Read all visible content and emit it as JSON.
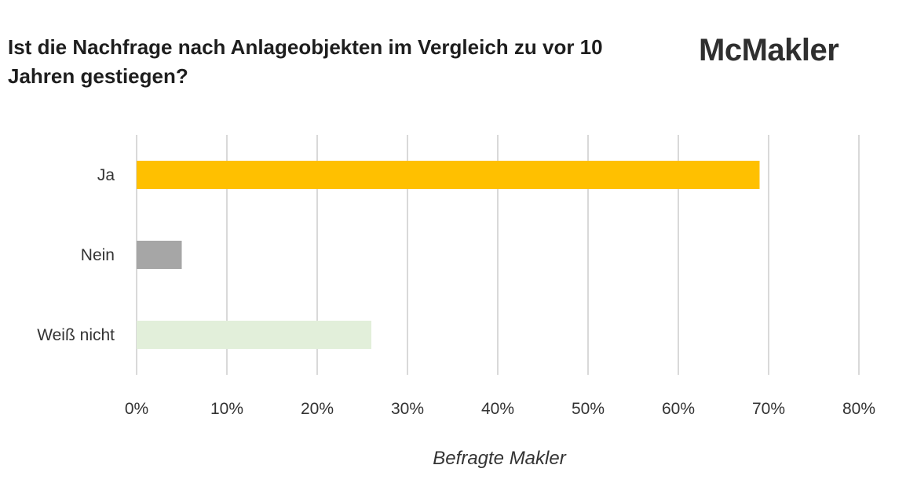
{
  "title": "Ist die Nachfrage nach Anlageobjekten im Vergleich zu vor 10 Jahren gestiegen?",
  "brand": "McMakler",
  "chart_data": {
    "type": "bar",
    "orientation": "horizontal",
    "title": "Ist die Nachfrage nach Anlageobjekten im Vergleich zu vor 10 Jahren gestiegen?",
    "categories": [
      "Ja",
      "Nein",
      "Weiß nicht"
    ],
    "values": [
      69,
      5,
      26
    ],
    "colors": [
      "#ffc000",
      "#a6a6a6",
      "#e2efda"
    ],
    "xlabel": "Befragte Makler",
    "ylabel": "",
    "xlim": [
      0,
      80
    ],
    "x_ticks": [
      0,
      10,
      20,
      30,
      40,
      50,
      60,
      70,
      80
    ],
    "x_tick_labels": [
      "0%",
      "10%",
      "20%",
      "30%",
      "40%",
      "50%",
      "60%",
      "70%",
      "80%"
    ],
    "grid": "vertical",
    "legend": "none"
  }
}
